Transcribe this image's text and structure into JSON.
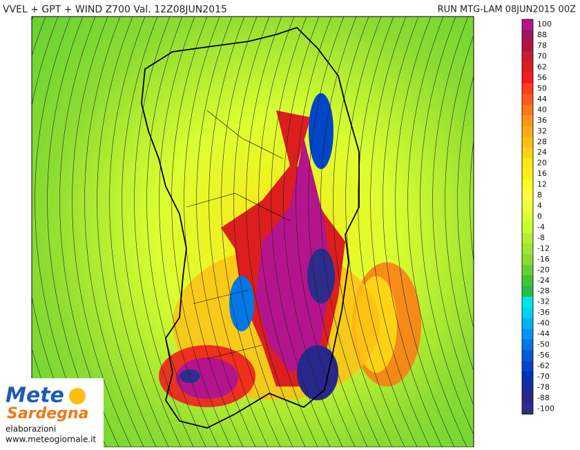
{
  "header": {
    "title": "VVEL + GPT + WIND Z700 Val. 12Z08JUN2015",
    "run": "RUN MTG-LAM 08JUN2015 00Z"
  },
  "colorbar": {
    "levels": [
      100,
      88,
      78,
      70,
      62,
      56,
      50,
      44,
      40,
      36,
      32,
      28,
      24,
      20,
      16,
      12,
      8,
      4,
      0,
      -4,
      -8,
      -12,
      -16,
      -20,
      -24,
      -28,
      -32,
      -36,
      -40,
      -44,
      -50,
      -56,
      -62,
      -70,
      -78,
      -88,
      -100
    ],
    "colors": [
      "#b4148c",
      "#a0145a",
      "#b4143c",
      "#c81e32",
      "#dc1e1e",
      "#f01e1e",
      "#ff3c1e",
      "#ff5a1e",
      "#ff7814",
      "#ff9614",
      "#ffaa14",
      "#ffbe14",
      "#ffd214",
      "#ffe614",
      "#fff014",
      "#ffff1e",
      "#ffff3c",
      "#f0ff3c",
      "#dcff32",
      "#c8ff32",
      "#b4f032",
      "#a0e632",
      "#8cdc32",
      "#64d232",
      "#3cc832",
      "#28be46",
      "#00e6e6",
      "#00d2f0",
      "#00b4f0",
      "#0096f0",
      "#0078e6",
      "#005adc",
      "#0046c8",
      "#0032b4",
      "#1e28a0",
      "#28288c",
      "#2d2d8c"
    ]
  },
  "logo": {
    "brand": "Mete",
    "region": "Sardegna",
    "caption": "elaborazioni",
    "site": "www.meteogiornale.it"
  }
}
